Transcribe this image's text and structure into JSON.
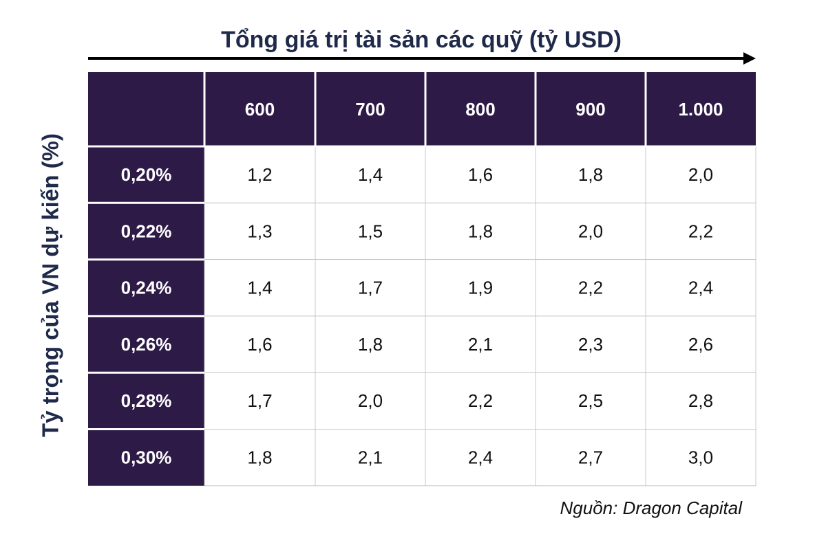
{
  "title": "Tổng giá trị tài sản các quỹ (tỷ USD)",
  "side_label": "Tỷ trọng của VN dự kiến (%)",
  "table": {
    "header": [
      "600",
      "700",
      "800",
      "900",
      "1.000"
    ],
    "rows": [
      {
        "label": "0,20%",
        "cells": [
          "1,2",
          "1,4",
          "1,6",
          "1,8",
          "2,0"
        ]
      },
      {
        "label": "0,22%",
        "cells": [
          "1,3",
          "1,5",
          "1,8",
          "2,0",
          "2,2"
        ]
      },
      {
        "label": "0,24%",
        "cells": [
          "1,4",
          "1,7",
          "1,9",
          "2,2",
          "2,4"
        ]
      },
      {
        "label": "0,26%",
        "cells": [
          "1,6",
          "1,8",
          "2,1",
          "2,3",
          "2,6"
        ]
      },
      {
        "label": "0,28%",
        "cells": [
          "1,7",
          "2,0",
          "2,2",
          "2,5",
          "2,8"
        ]
      },
      {
        "label": "0,30%",
        "cells": [
          "1,8",
          "2,1",
          "2,4",
          "2,7",
          "3,0"
        ]
      }
    ]
  },
  "source": "Nguồn: Dragon Capital"
}
